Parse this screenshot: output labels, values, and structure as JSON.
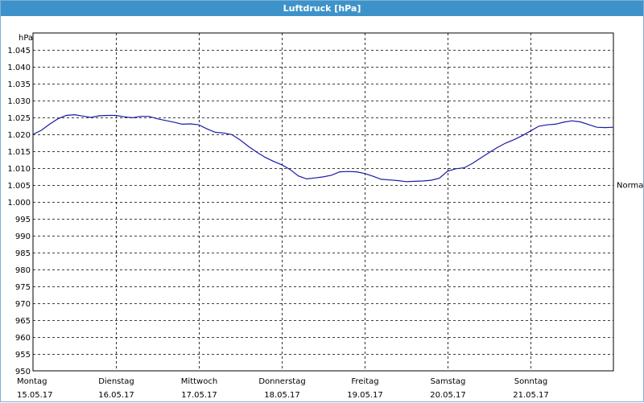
{
  "window": {
    "title": "Luftdruck [hPa]"
  },
  "chart_data": {
    "type": "line",
    "title": "Luftdruck [hPa]",
    "ylabel": "hPa",
    "xlabel": "",
    "ylim": [
      950,
      1050
    ],
    "ytick_labels": [
      "1.045",
      "1.040",
      "1.035",
      "1.030",
      "1.025",
      "1.020",
      "1.015",
      "1.010",
      "1.005",
      "1.000",
      "995",
      "990",
      "985",
      "980",
      "975",
      "970",
      "965",
      "960",
      "955",
      "950"
    ],
    "ytick_values": [
      1045,
      1040,
      1035,
      1030,
      1025,
      1020,
      1015,
      1010,
      1005,
      1000,
      995,
      990,
      985,
      980,
      975,
      970,
      965,
      960,
      955,
      950
    ],
    "x_ticks": [
      {
        "day": "Montag",
        "date": "15.05.17"
      },
      {
        "day": "Dienstag",
        "date": "16.05.17"
      },
      {
        "day": "Mittwoch",
        "date": "17.05.17"
      },
      {
        "day": "Donnerstag",
        "date": "18.05.17"
      },
      {
        "day": "Freitag",
        "date": "19.05.17"
      },
      {
        "day": "Samstag",
        "date": "20.05.17"
      },
      {
        "day": "Sonntag",
        "date": "21.05.17"
      }
    ],
    "xlim_days": [
      0,
      7
    ],
    "grid": true,
    "reference_line": {
      "label": "Normal",
      "value": 1005
    },
    "series": [
      {
        "color": "#1a1aa6",
        "x": [
          0,
          0.1,
          0.2,
          0.3,
          0.4,
          0.5,
          0.6,
          0.7,
          0.8,
          0.9,
          1.0,
          1.1,
          1.2,
          1.3,
          1.4,
          1.5,
          1.6,
          1.7,
          1.8,
          1.9,
          2.0,
          2.1,
          2.2,
          2.3,
          2.4,
          2.5,
          2.6,
          2.7,
          2.8,
          2.9,
          3.0,
          3.1,
          3.2,
          3.3,
          3.4,
          3.5,
          3.6,
          3.7,
          3.8,
          3.9,
          4.0,
          4.1,
          4.2,
          4.3,
          4.4,
          4.5,
          4.6,
          4.7,
          4.8,
          4.9,
          5.0,
          5.1,
          5.2,
          5.3,
          5.4,
          5.5,
          5.6,
          5.7,
          5.8,
          5.9,
          6.0,
          6.1,
          6.2,
          6.3,
          6.4,
          6.5,
          6.6,
          6.7,
          6.8,
          6.9,
          7.0
        ],
        "y": [
          1020.0,
          1021.2,
          1023.0,
          1024.6,
          1025.6,
          1025.8,
          1025.4,
          1025.0,
          1025.5,
          1025.6,
          1025.6,
          1025.2,
          1024.9,
          1025.3,
          1025.3,
          1024.6,
          1024.1,
          1023.6,
          1023.0,
          1023.1,
          1022.8,
          1021.6,
          1020.6,
          1020.4,
          1019.9,
          1018.3,
          1016.4,
          1014.7,
          1013.2,
          1012.0,
          1011.0,
          1009.6,
          1007.7,
          1006.8,
          1007.1,
          1007.4,
          1007.9,
          1008.9,
          1009.0,
          1008.9,
          1008.4,
          1007.6,
          1006.7,
          1006.5,
          1006.3,
          1006.0,
          1006.1,
          1006.2,
          1006.4,
          1007.0,
          1009.1,
          1009.8,
          1010.1,
          1011.4,
          1013.0,
          1014.6,
          1016.1,
          1017.4,
          1018.4,
          1019.6,
          1021.0,
          1022.4,
          1022.8,
          1023.0,
          1023.6,
          1024.0,
          1023.7,
          1022.9,
          1022.1,
          1022.0,
          1022.1
        ]
      }
    ]
  }
}
